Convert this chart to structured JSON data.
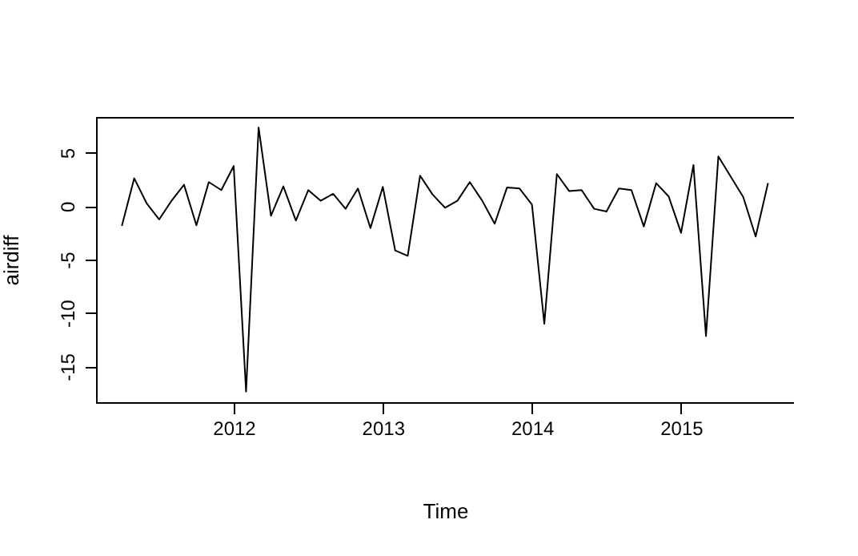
{
  "chart_data": {
    "type": "line",
    "xlabel": "Time",
    "ylabel": "airdiff",
    "x": [
      2011.25,
      2011.333,
      2011.417,
      2011.5,
      2011.583,
      2011.667,
      2011.75,
      2011.833,
      2011.917,
      2012,
      2012.083,
      2012.167,
      2012.25,
      2012.333,
      2012.417,
      2012.5,
      2012.583,
      2012.667,
      2012.75,
      2012.833,
      2012.917,
      2013,
      2013.083,
      2013.167,
      2013.25,
      2013.333,
      2013.417,
      2013.5,
      2013.583,
      2013.667,
      2013.75,
      2013.833,
      2013.917,
      2014,
      2014.083,
      2014.167,
      2014.25,
      2014.333,
      2014.417,
      2014.5,
      2014.583,
      2014.667,
      2014.75,
      2014.833,
      2014.917,
      2015,
      2015.083,
      2015.167,
      2015.25,
      2015.333,
      2015.417,
      2015.5,
      2015.583
    ],
    "series": [
      {
        "color": "#000000",
        "values": [
          -1.85,
          2.6,
          0.25,
          -1.25,
          0.5,
          2.0,
          -1.8,
          2.25,
          1.5,
          3.75,
          -17.35,
          7.35,
          -0.9,
          1.85,
          -1.35,
          1.5,
          0.5,
          1.15,
          -0.25,
          1.65,
          -2.05,
          1.8,
          -4.15,
          -4.65,
          2.85,
          1.1,
          -0.15,
          0.5,
          2.25,
          0.5,
          -1.65,
          1.75,
          1.65,
          0.15,
          -11,
          3.0,
          1.4,
          1.5,
          -0.25,
          -0.5,
          1.65,
          1.5,
          -1.9,
          2.15,
          0.9,
          -2.5,
          3.85,
          -12.15,
          4.65,
          2.75,
          0.85,
          -2.85,
          2.15
        ]
      }
    ],
    "xlim": [
      2011.077,
      2015.757
    ],
    "xticks": [
      2012,
      2013,
      2014,
      2015
    ],
    "ylim": [
      -18.34,
      8.34
    ],
    "yticks": [
      -15,
      -10,
      -5,
      0,
      5
    ],
    "grid": false
  }
}
